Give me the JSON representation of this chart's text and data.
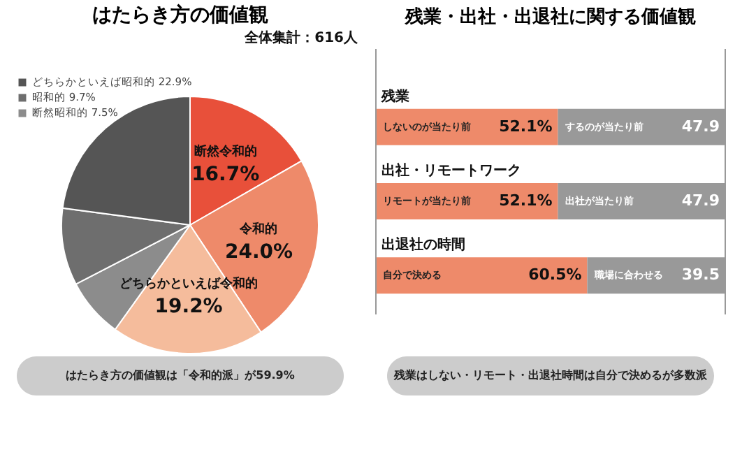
{
  "chart_data": [
    {
      "type": "pie",
      "title": "はたらき方の価値観",
      "categories": [
        "断然令和的",
        "令和的",
        "どちらかといえば令和的",
        "断然昭和的",
        "昭和的",
        "どちらかといえば昭和的"
      ],
      "values": [
        16.7,
        24.0,
        19.2,
        7.5,
        9.7,
        22.9
      ],
      "colors": [
        "#e8503a",
        "#ee8a6a",
        "#f5bc9c",
        "#8c8c8c",
        "#6e6e6e",
        "#555555"
      ],
      "value_labels": [
        "16.7%",
        "24.0%",
        "19.2%",
        "7.5%",
        "9.7%",
        "22.9%"
      ],
      "legend": "top left",
      "annotations": [
        "全体集計：616人",
        "はたらき方の価値観は「令和的派」が59.9%"
      ]
    },
    {
      "type": "bar",
      "title": "残業・出社・出退社に関する価値観",
      "orientation": "horizontal",
      "stacked": true,
      "categories": [
        "残業",
        "出社・リモートワーク",
        "出退社の時間"
      ],
      "series": [
        {
          "color": "#ee8a6a",
          "values": [
            52.1,
            52.1,
            60.5
          ],
          "value_labels": [
            "52.1%",
            "52.1%",
            "60.5%"
          ]
        },
        {
          "color": "#999999",
          "values": [
            47.9,
            47.9,
            39.5
          ],
          "value_labels": [
            "47.9",
            "47.9",
            "39.5"
          ]
        }
      ],
      "xlim": [
        0,
        100
      ],
      "tick_labels": false,
      "annotations": [
        "しないのが当たり前",
        "するのが当たり前",
        "リモートが当たり前",
        "出社が当たり前",
        "自分で決める",
        "職場に合わせる",
        "残業はしない・リモート・出退社時間は自分で決めるが多数派"
      ]
    }
  ]
}
